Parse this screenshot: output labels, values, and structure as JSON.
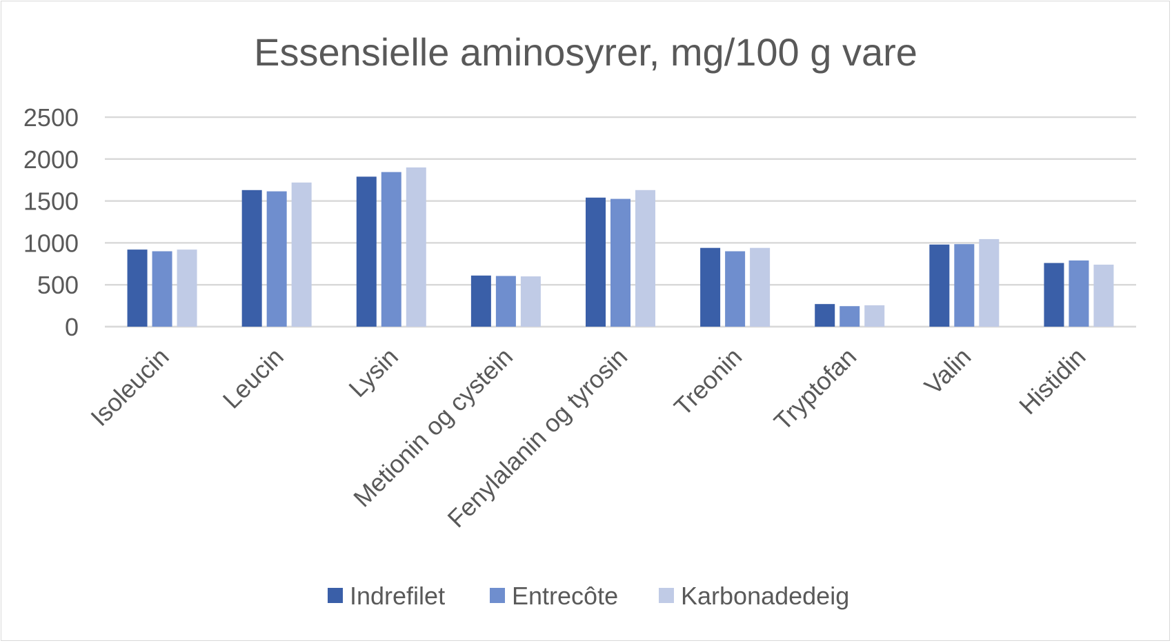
{
  "chart_data": {
    "type": "bar",
    "title": "Essensielle aminosyrer, mg/100 g vare",
    "xlabel": "",
    "ylabel": "",
    "ylim": [
      0,
      2500
    ],
    "yticks": [
      0,
      500,
      1000,
      1500,
      2000,
      2500
    ],
    "grid": true,
    "legend_position": "bottom",
    "categories": [
      "Isoleucin",
      "Leucin",
      "Lysin",
      "Metionin og cystein",
      "Fenylalanin og tyrosin",
      "Treonin",
      "Tryptofan",
      "Valin",
      "Histidin"
    ],
    "series": [
      {
        "name": "Indrefilet",
        "color": "#3A5FA8",
        "values": [
          920,
          1630,
          1790,
          610,
          1540,
          940,
          270,
          980,
          760
        ]
      },
      {
        "name": "Entrecôte",
        "color": "#6F8ECE",
        "values": [
          900,
          1615,
          1845,
          605,
          1525,
          900,
          245,
          985,
          790
        ]
      },
      {
        "name": "Karbonadedeig",
        "color": "#C0CBE6",
        "values": [
          920,
          1720,
          1900,
          600,
          1630,
          940,
          255,
          1045,
          740
        ]
      }
    ]
  }
}
